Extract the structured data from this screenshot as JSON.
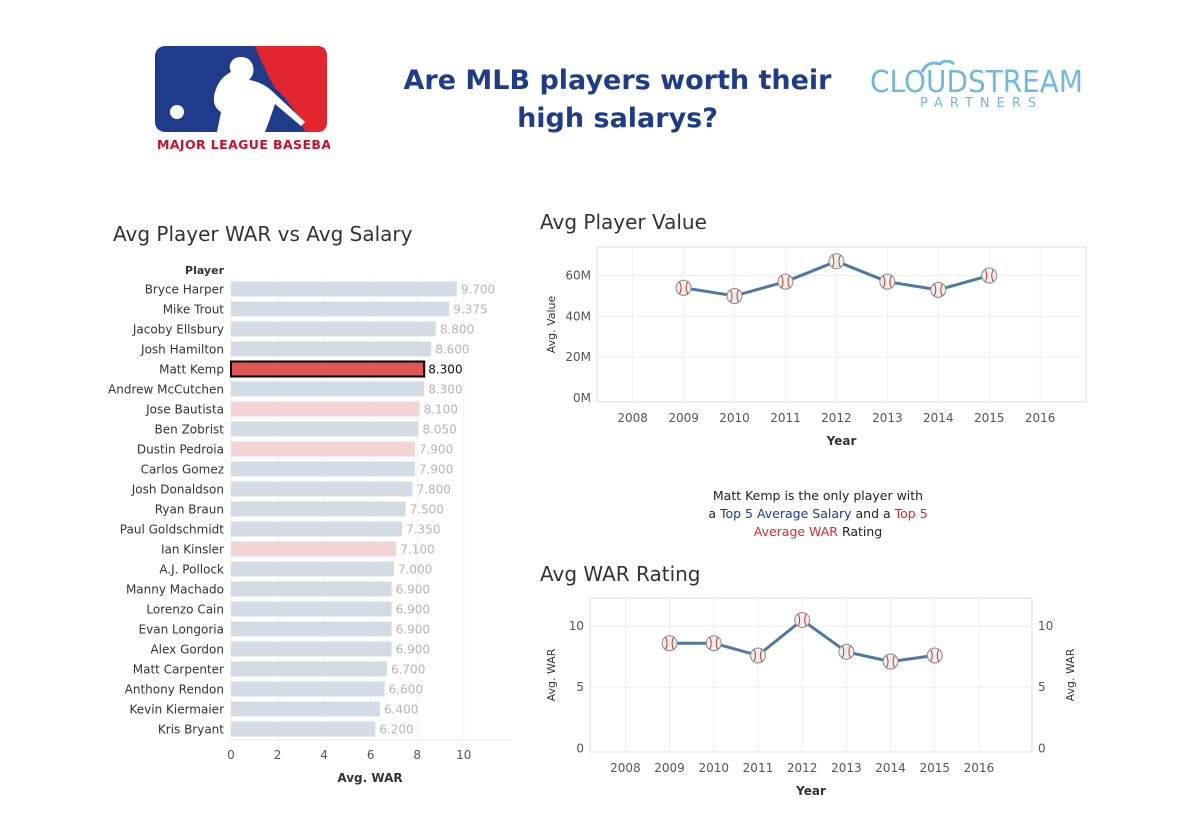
{
  "header": {
    "title": "Are MLB players worth their high salarys?",
    "mlb_logo_text": "MAJOR LEAGUE BASEBALL",
    "partner_logo": {
      "line1": "CLOUDSTREAM",
      "line2": "PARTNERS"
    }
  },
  "colors": {
    "default_bar": "#d3dce5",
    "highlight_bar": "#e05555",
    "light_red_bar": "#f2d4d5",
    "line": "#4e79a7",
    "title_blue": "#1f3b8c",
    "accent_red": "#e3262d"
  },
  "annotation": {
    "line1": "Matt Kemp is the only player with",
    "line2_a": "a ",
    "line2_b": "Top 5 Average Salary",
    "line2_c": " and a ",
    "line2_d": "Top 5",
    "line3_a": "Average WAR",
    "line3_b": " Rating"
  },
  "chart_data": [
    {
      "type": "bar",
      "title": "Avg Player WAR vs  Avg Salary",
      "category_header": "Player",
      "xlabel": "Avg. WAR",
      "xlim": [
        0,
        11.5
      ],
      "xticks": [
        0,
        2,
        4,
        6,
        8,
        10
      ],
      "categories": [
        "Bryce Harper",
        "Mike Trout",
        "Jacoby Ellsbury",
        "Josh Hamilton",
        "Matt Kemp",
        "Andrew McCutchen",
        "Jose Bautista",
        "Ben Zobrist",
        "Dustin Pedroia",
        "Carlos Gomez",
        "Josh Donaldson",
        "Ryan Braun",
        "Paul Goldschmidt",
        "Ian Kinsler",
        "A.J. Pollock",
        "Manny Machado",
        "Lorenzo Cain",
        "Evan Longoria",
        "Alex Gordon",
        "Matt Carpenter",
        "Anthony Rendon",
        "Kevin Kiermaier",
        "Kris Bryant"
      ],
      "values": [
        9.7,
        9.375,
        8.8,
        8.6,
        8.3,
        8.3,
        8.1,
        8.05,
        7.9,
        7.9,
        7.8,
        7.5,
        7.35,
        7.1,
        7.0,
        6.9,
        6.9,
        6.9,
        6.9,
        6.7,
        6.6,
        6.4,
        6.2
      ],
      "value_labels": [
        "9.700",
        "9.375",
        "8.800",
        "8.600",
        "8.300",
        "8.300",
        "8.100",
        "8.050",
        "7.900",
        "7.900",
        "7.800",
        "7.500",
        "7.350",
        "7.100",
        "7.000",
        "6.900",
        "6.900",
        "6.900",
        "6.900",
        "6.700",
        "6.600",
        "6.400",
        "6.200"
      ],
      "highlight": [
        "default",
        "default",
        "default",
        "default",
        "selected",
        "default",
        "light-red",
        "default",
        "light-red",
        "default",
        "default",
        "default",
        "default",
        "light-red",
        "default",
        "default",
        "default",
        "default",
        "default",
        "default",
        "default",
        "default",
        "default"
      ]
    },
    {
      "type": "line",
      "title": "Avg Player Value",
      "xlabel": "Year",
      "ylabel": "Avg. Value",
      "x": [
        2009,
        2010,
        2011,
        2012,
        2013,
        2014,
        2015
      ],
      "values": [
        54,
        50,
        57,
        67,
        57,
        53,
        60
      ],
      "unit": "M",
      "xlim": [
        2007.3,
        2016.9
      ],
      "xticks": [
        2008,
        2009,
        2010,
        2011,
        2012,
        2013,
        2014,
        2015,
        2016
      ],
      "ylim": [
        -2,
        74
      ],
      "yticks": [
        0,
        20,
        40,
        60
      ],
      "ytick_labels": [
        "0M",
        "20M",
        "40M",
        "60M"
      ]
    },
    {
      "type": "line",
      "title": "Avg WAR Rating",
      "xlabel": "Year",
      "ylabel": "Avg. WAR",
      "x": [
        2009,
        2010,
        2011,
        2012,
        2013,
        2014,
        2015
      ],
      "values": [
        8.6,
        8.6,
        7.6,
        10.5,
        7.9,
        7.1,
        7.6
      ],
      "xlim": [
        2007.2,
        2017.2
      ],
      "xticks": [
        2008,
        2009,
        2010,
        2011,
        2012,
        2013,
        2014,
        2015,
        2016
      ],
      "ylim": [
        -0.3,
        12.3
      ],
      "yticks": [
        0,
        5,
        10
      ],
      "ytick_labels": [
        "0",
        "5",
        "10"
      ]
    }
  ]
}
